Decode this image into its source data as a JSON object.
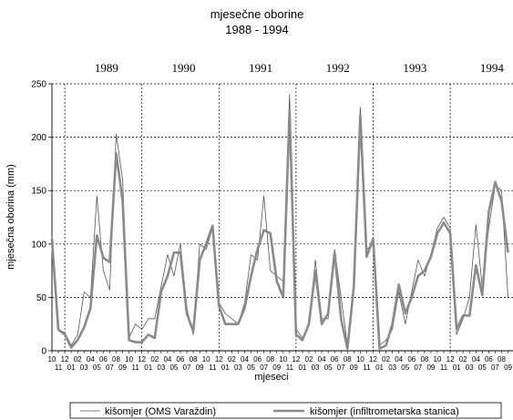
{
  "chart_data": {
    "type": "line",
    "title": "mjesečne oborine",
    "subtitle": "1988 - 1994",
    "x_label": "mjeseci",
    "y_label": "mjesečna oborina (mm)",
    "years": [
      "1989",
      "1990",
      "1991",
      "1992",
      "1993",
      "1994"
    ],
    "categories": [
      "10",
      "11",
      "12",
      "01",
      "02",
      "03",
      "04",
      "05",
      "06",
      "07",
      "08",
      "09",
      "10",
      "11",
      "12",
      "01",
      "02",
      "03",
      "04",
      "05",
      "06",
      "07",
      "08",
      "09",
      "10",
      "11",
      "12",
      "01",
      "02",
      "03",
      "04",
      "05",
      "06",
      "07",
      "08",
      "09",
      "10",
      "11",
      "12",
      "01",
      "02",
      "03",
      "04",
      "05",
      "06",
      "07",
      "08",
      "09",
      "10",
      "11",
      "12",
      "01",
      "02",
      "03",
      "04",
      "05",
      "06",
      "07",
      "08",
      "09",
      "10",
      "11",
      "12",
      "01",
      "02",
      "03",
      "04",
      "05",
      "06",
      "07",
      "08",
      "09"
    ],
    "series": [
      {
        "name": "kišomjer (OMS Varaždin)",
        "color": "#555555",
        "width": 0.8,
        "values": [
          107,
          20,
          17,
          5,
          15,
          55,
          50,
          145,
          75,
          57,
          203,
          160,
          12,
          25,
          20,
          30,
          30,
          60,
          90,
          70,
          100,
          40,
          15,
          100,
          95,
          115,
          45,
          35,
          30,
          25,
          45,
          90,
          85,
          145,
          75,
          70,
          65,
          240,
          20,
          12,
          25,
          85,
          30,
          30,
          95,
          50,
          5,
          65,
          228,
          95,
          100,
          5,
          10,
          20,
          55,
          25,
          55,
          85,
          70,
          90,
          115,
          125,
          115,
          15,
          30,
          50,
          118,
          60,
          115,
          155,
          150,
          50
        ]
      },
      {
        "name": "kišomjer (infiltrometarska stanica)",
        "color": "#8a8a8a",
        "width": 2.6,
        "values": [
          105,
          20,
          15,
          3,
          10,
          22,
          40,
          108,
          87,
          83,
          185,
          140,
          10,
          8,
          8,
          15,
          12,
          55,
          70,
          92,
          92,
          35,
          18,
          85,
          100,
          117,
          42,
          25,
          25,
          25,
          40,
          70,
          95,
          113,
          110,
          65,
          50,
          225,
          15,
          10,
          25,
          75,
          25,
          35,
          92,
          30,
          2,
          60,
          220,
          88,
          105,
          2,
          5,
          25,
          62,
          35,
          50,
          70,
          75,
          88,
          110,
          120,
          110,
          20,
          33,
          33,
          80,
          52,
          130,
          158,
          140,
          92
        ]
      }
    ],
    "ylim": [
      0,
      250
    ],
    "yticks": [
      0,
      50,
      100,
      150,
      200,
      250
    ],
    "grid": true
  }
}
